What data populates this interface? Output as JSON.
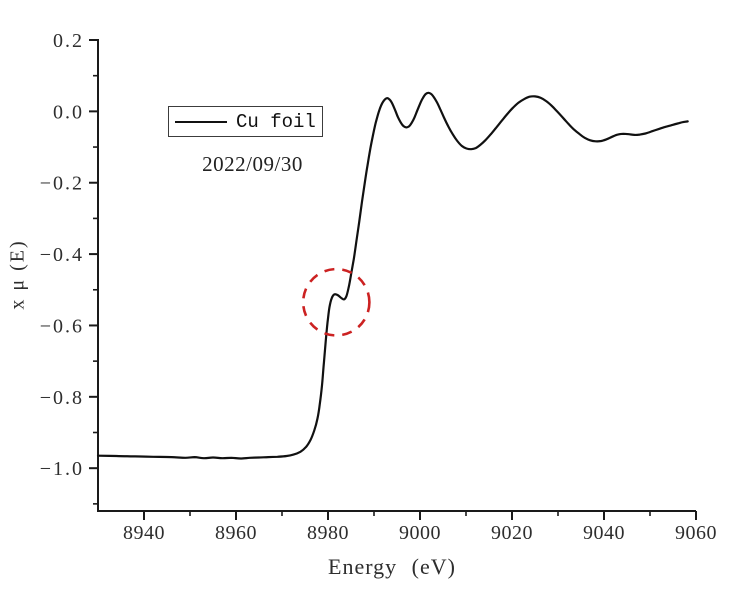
{
  "figure": {
    "background_color": "#ffffff",
    "axis_color": "#1a1a1a",
    "tick_label_color": "#2e2e2e",
    "curve_color": "#111111",
    "annotation_color": "#cc2222"
  },
  "legend": {
    "label": "Cu foil",
    "date": "2022/09/30"
  },
  "chart_data": {
    "type": "line",
    "title": "",
    "xlabel": "Energy (eV)",
    "ylabel": "x μ (E)",
    "xlim": [
      8930,
      9060
    ],
    "ylim": [
      -1.12,
      0.2
    ],
    "x_major_ticks": [
      8940,
      8960,
      8980,
      9000,
      9020,
      9040,
      9060
    ],
    "x_minor_ticks": [
      8950,
      8970,
      8990,
      9010,
      9030,
      9050
    ],
    "y_major_ticks": [
      0.2,
      0.0,
      -0.2,
      -0.4,
      -0.6,
      -0.8,
      -1.0
    ],
    "y_minor_ticks": [
      0.1,
      -0.1,
      -0.3,
      -0.5,
      -0.7,
      -0.9,
      -1.1
    ],
    "grid": false,
    "legend_position": "upper-left-inside",
    "series": [
      {
        "name": "Cu foil",
        "color": "#111111",
        "points": [
          [
            8930,
            -0.965
          ],
          [
            8934,
            -0.966
          ],
          [
            8938,
            -0.967
          ],
          [
            8942,
            -0.968
          ],
          [
            8946,
            -0.969
          ],
          [
            8949,
            -0.971
          ],
          [
            8951,
            -0.969
          ],
          [
            8953,
            -0.972
          ],
          [
            8955,
            -0.97
          ],
          [
            8957,
            -0.972
          ],
          [
            8959,
            -0.971
          ],
          [
            8961,
            -0.973
          ],
          [
            8963,
            -0.971
          ],
          [
            8965,
            -0.97
          ],
          [
            8967,
            -0.969
          ],
          [
            8969,
            -0.968
          ],
          [
            8971,
            -0.966
          ],
          [
            8972.5,
            -0.962
          ],
          [
            8974,
            -0.954
          ],
          [
            8975.2,
            -0.941
          ],
          [
            8976.2,
            -0.921
          ],
          [
            8977.0,
            -0.895
          ],
          [
            8977.7,
            -0.862
          ],
          [
            8978.2,
            -0.822
          ],
          [
            8978.7,
            -0.768
          ],
          [
            8979.1,
            -0.705
          ],
          [
            8979.5,
            -0.645
          ],
          [
            8979.9,
            -0.592
          ],
          [
            8980.3,
            -0.55
          ],
          [
            8980.8,
            -0.524
          ],
          [
            8981.4,
            -0.513
          ],
          [
            8982.1,
            -0.515
          ],
          [
            8982.9,
            -0.523
          ],
          [
            8983.5,
            -0.527
          ],
          [
            8984.0,
            -0.518
          ],
          [
            8984.5,
            -0.493
          ],
          [
            8985.0,
            -0.458
          ],
          [
            8985.6,
            -0.414
          ],
          [
            8986.2,
            -0.362
          ],
          [
            8986.8,
            -0.308
          ],
          [
            8987.4,
            -0.253
          ],
          [
            8988.0,
            -0.2
          ],
          [
            8988.6,
            -0.15
          ],
          [
            8989.2,
            -0.105
          ],
          [
            8989.8,
            -0.065
          ],
          [
            8990.4,
            -0.031
          ],
          [
            8991.0,
            -0.003
          ],
          [
            8991.6,
            0.018
          ],
          [
            8992.2,
            0.031
          ],
          [
            8992.8,
            0.037
          ],
          [
            8993.4,
            0.033
          ],
          [
            8994.0,
            0.021
          ],
          [
            8994.6,
            0.003
          ],
          [
            8995.2,
            -0.016
          ],
          [
            8995.8,
            -0.031
          ],
          [
            8996.4,
            -0.041
          ],
          [
            8997.0,
            -0.045
          ],
          [
            8997.6,
            -0.042
          ],
          [
            8998.2,
            -0.032
          ],
          [
            8998.8,
            -0.017
          ],
          [
            8999.4,
            0.002
          ],
          [
            9000.0,
            0.021
          ],
          [
            9000.6,
            0.037
          ],
          [
            9001.2,
            0.048
          ],
          [
            9001.8,
            0.052
          ],
          [
            9002.4,
            0.049
          ],
          [
            9003.0,
            0.04
          ],
          [
            9003.7,
            0.025
          ],
          [
            9004.4,
            0.006
          ],
          [
            9005.2,
            -0.017
          ],
          [
            9006.1,
            -0.041
          ],
          [
            9007.1,
            -0.064
          ],
          [
            9008.1,
            -0.083
          ],
          [
            9009.1,
            -0.097
          ],
          [
            9010.1,
            -0.104
          ],
          [
            9011.1,
            -0.106
          ],
          [
            9012.1,
            -0.103
          ],
          [
            9013.1,
            -0.094
          ],
          [
            9014.2,
            -0.081
          ],
          [
            9015.4,
            -0.064
          ],
          [
            9016.6,
            -0.045
          ],
          [
            9017.8,
            -0.026
          ],
          [
            9019.0,
            -0.007
          ],
          [
            9020.2,
            0.01
          ],
          [
            9021.4,
            0.024
          ],
          [
            9022.6,
            0.034
          ],
          [
            9023.8,
            0.041
          ],
          [
            9025.0,
            0.042
          ],
          [
            9026.2,
            0.038
          ],
          [
            9027.4,
            0.029
          ],
          [
            9028.6,
            0.016
          ],
          [
            9029.8,
            0.0
          ],
          [
            9031.0,
            -0.017
          ],
          [
            9032.2,
            -0.034
          ],
          [
            9033.4,
            -0.05
          ],
          [
            9034.6,
            -0.063
          ],
          [
            9035.8,
            -0.074
          ],
          [
            9037.0,
            -0.081
          ],
          [
            9038.2,
            -0.084
          ],
          [
            9039.4,
            -0.083
          ],
          [
            9040.6,
            -0.078
          ],
          [
            9041.8,
            -0.071
          ],
          [
            9043.0,
            -0.065
          ],
          [
            9044.2,
            -0.063
          ],
          [
            9045.4,
            -0.064
          ],
          [
            9046.6,
            -0.066
          ],
          [
            9047.8,
            -0.065
          ],
          [
            9049.0,
            -0.062
          ],
          [
            9050.4,
            -0.056
          ],
          [
            9051.8,
            -0.05
          ],
          [
            9053.2,
            -0.044
          ],
          [
            9054.6,
            -0.039
          ],
          [
            9056.0,
            -0.034
          ],
          [
            9057.2,
            -0.03
          ],
          [
            9058.2,
            -0.028
          ]
        ]
      }
    ],
    "annotations": [
      {
        "type": "dashed-circle",
        "center": [
          8981.8,
          -0.535
        ],
        "radius_ev": 7.2,
        "radius_mu": 0.093,
        "color": "#cc2222"
      }
    ]
  }
}
